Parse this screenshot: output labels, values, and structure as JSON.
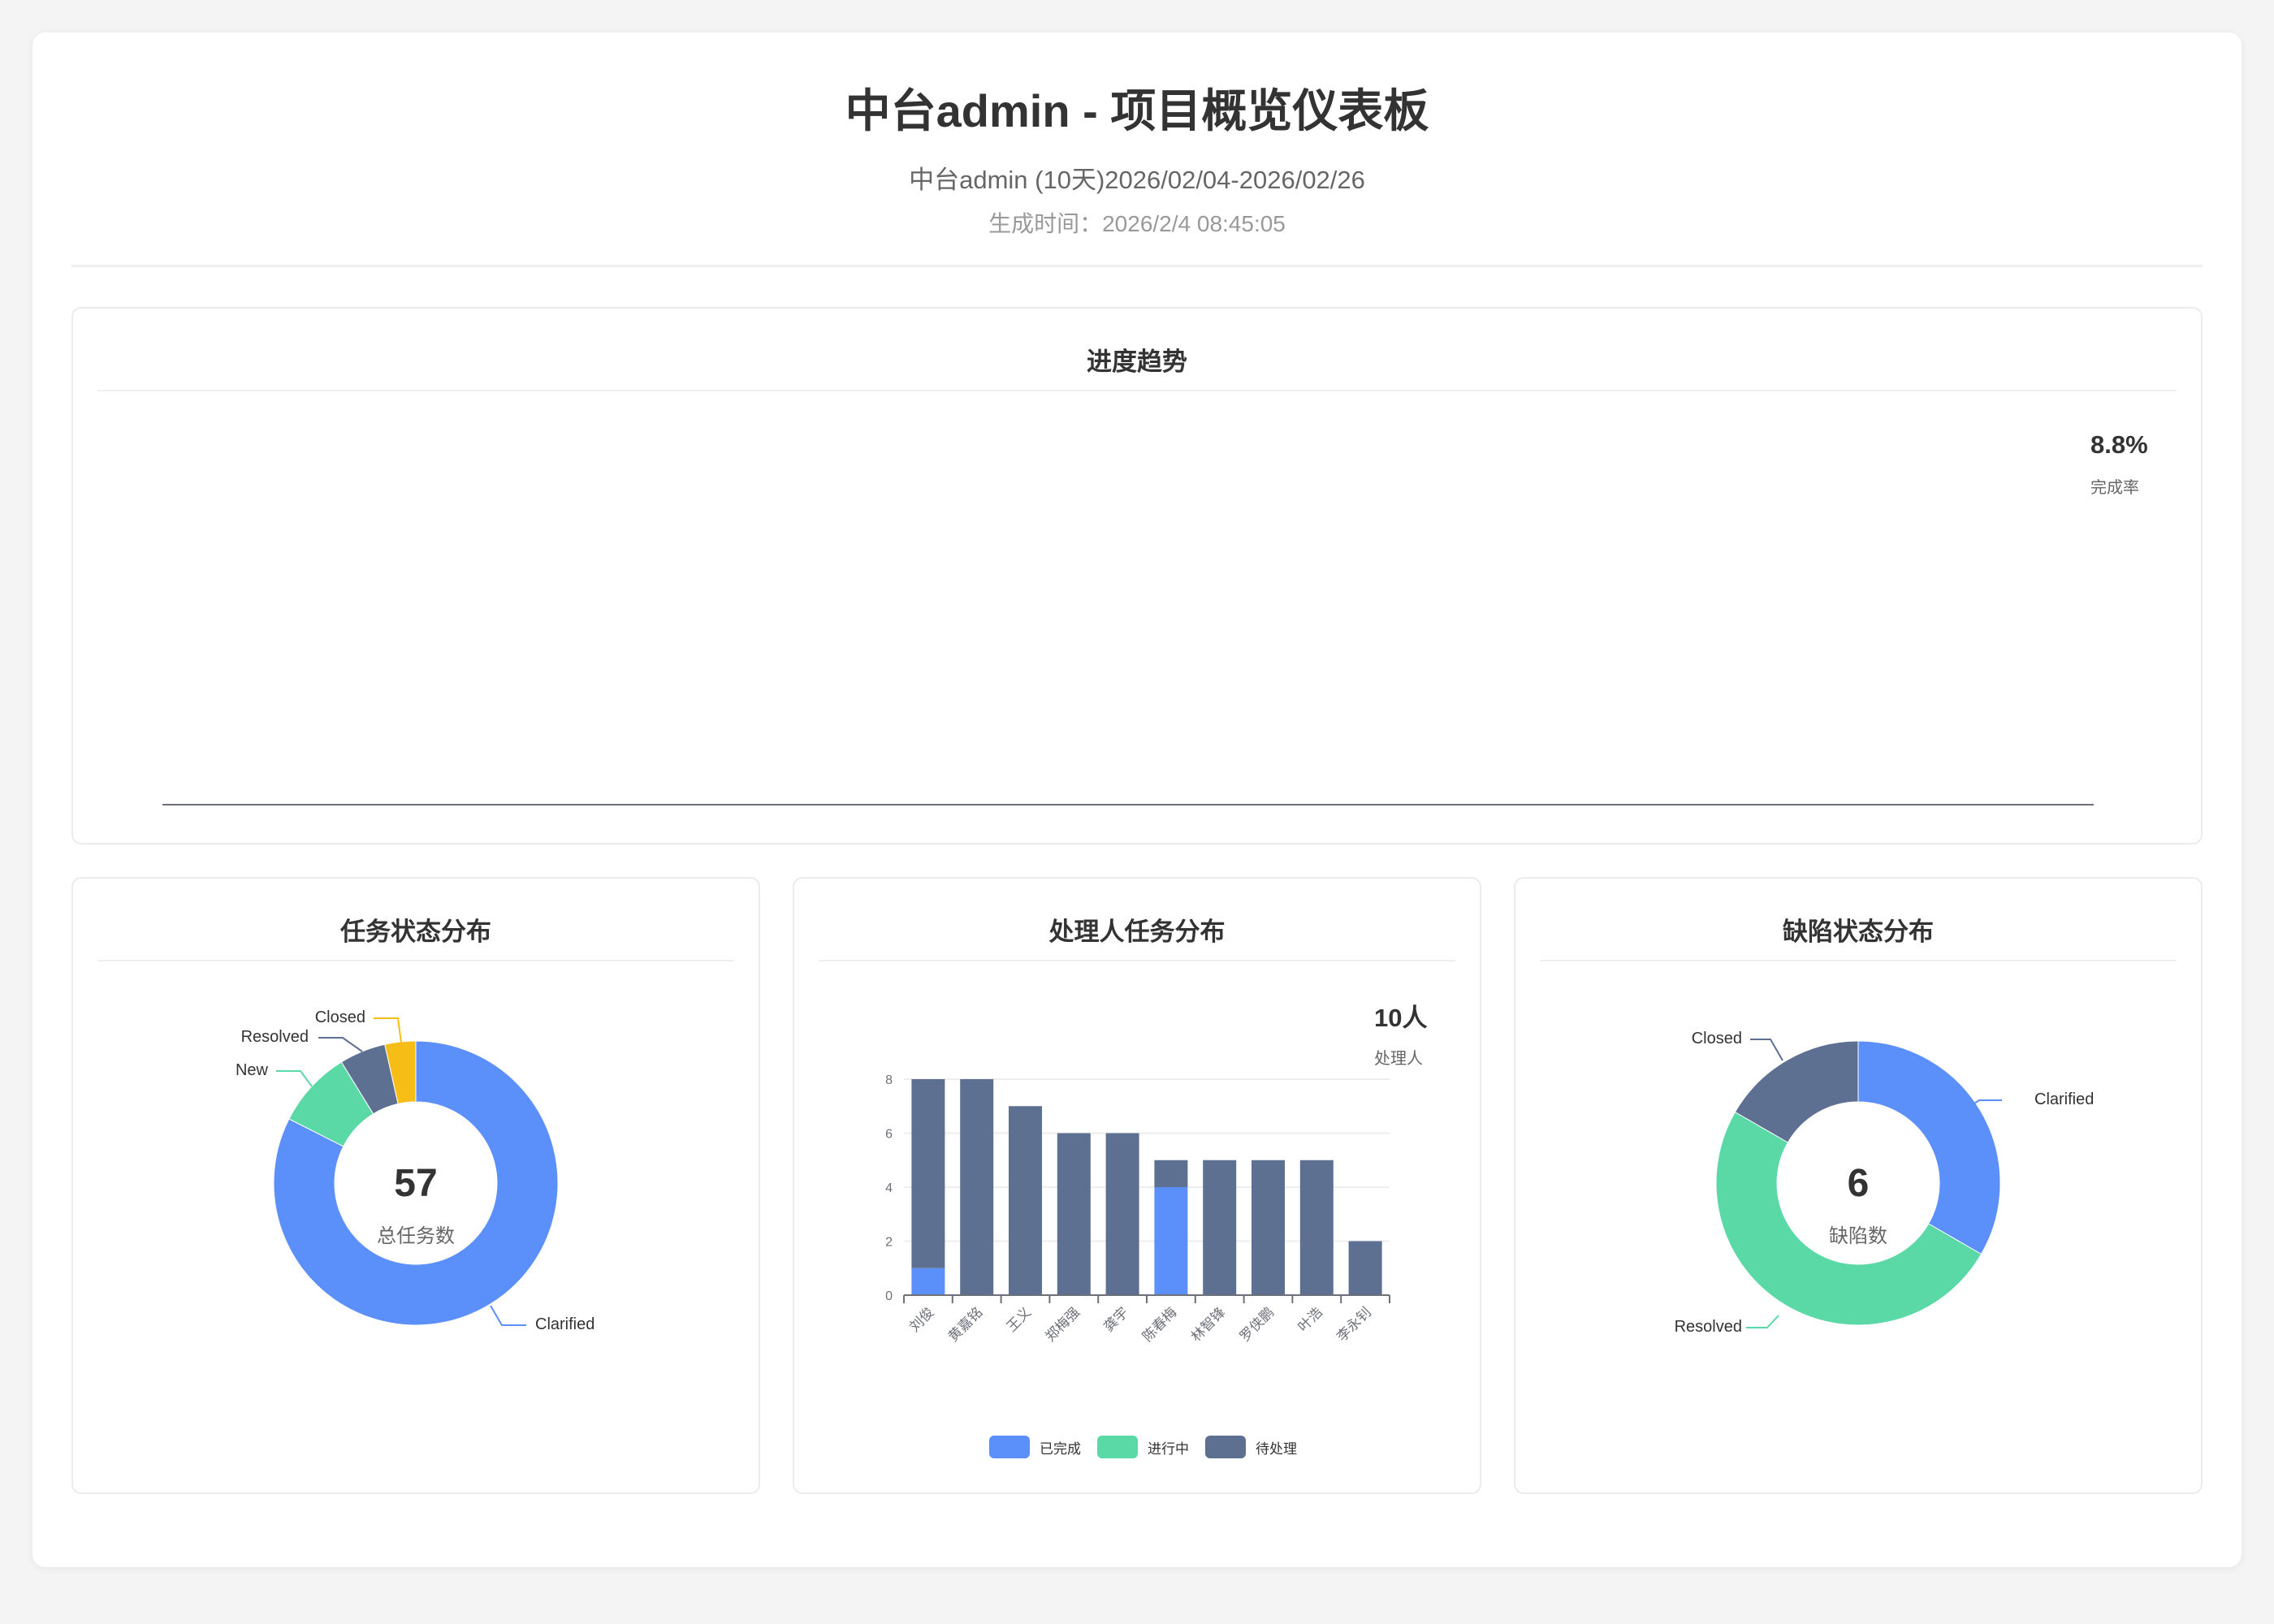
{
  "header": {
    "title": "中台admin - 项目概览仪表板",
    "subtitle": "中台admin (10天)2026/02/04-2026/02/26",
    "generated": "生成时间：2026/2/4 08:45:05"
  },
  "progress": {
    "title": "进度趋势",
    "rate_value": "8.8%",
    "rate_label": "完成率"
  },
  "colors": {
    "blue": "#5b8ff9",
    "green": "#5ad8a6",
    "slate": "#5d7092",
    "yellow": "#f6bd16"
  },
  "chart_data": [
    {
      "type": "pie",
      "title": "任务状态分布",
      "center_value": "57",
      "center_label": "总任务数",
      "slices": [
        {
          "name": "Clarified",
          "value": 47,
          "color": "#5b8ff9"
        },
        {
          "name": "New",
          "value": 5,
          "color": "#5ad8a6"
        },
        {
          "name": "Resolved",
          "value": 3,
          "color": "#5d7092"
        },
        {
          "name": "Closed",
          "value": 2,
          "color": "#f6bd16"
        }
      ]
    },
    {
      "type": "bar",
      "title": "处理人任务分布",
      "stat_value": "10人",
      "stat_label": "处理人",
      "stacked": true,
      "categories": [
        "刘俊",
        "黄嘉铭",
        "王义",
        "郑梅强",
        "龚宇",
        "陈春梅",
        "林智锋",
        "罗侠鹏",
        "叶浩",
        "李永钊"
      ],
      "series": [
        {
          "name": "已完成",
          "color": "#5b8ff9",
          "values": [
            1,
            0,
            0,
            0,
            0,
            4,
            0,
            0,
            0,
            0
          ]
        },
        {
          "name": "进行中",
          "color": "#5ad8a6",
          "values": [
            0,
            0,
            0,
            0,
            0,
            0,
            0,
            0,
            0,
            0
          ]
        },
        {
          "name": "待处理",
          "color": "#5d7092",
          "values": [
            7,
            8,
            7,
            6,
            6,
            1,
            5,
            5,
            5,
            2
          ]
        }
      ],
      "ylim": [
        0,
        8
      ],
      "yticks": [
        0,
        2,
        4,
        6,
        8
      ],
      "grid": true,
      "legend": "bottom"
    },
    {
      "type": "pie",
      "title": "缺陷状态分布",
      "center_value": "6",
      "center_label": "缺陷数",
      "slices": [
        {
          "name": "Clarified",
          "value": 2,
          "color": "#5b8ff9"
        },
        {
          "name": "Resolved",
          "value": 3,
          "color": "#5ad8a6"
        },
        {
          "name": "Closed",
          "value": 1,
          "color": "#5d7092"
        }
      ]
    }
  ]
}
